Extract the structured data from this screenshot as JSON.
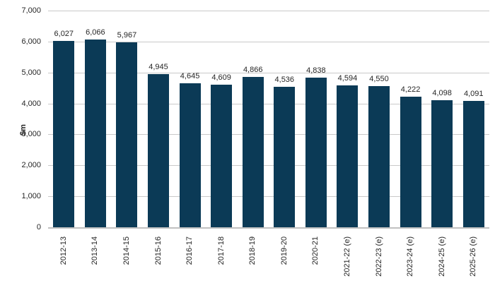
{
  "chart_data": {
    "type": "bar",
    "title": "",
    "xlabel": "",
    "ylabel": "$m",
    "categories": [
      "2012-13",
      "2013-14",
      "2014-15",
      "2015-16",
      "2016-17",
      "2017-18",
      "2018-19",
      "2019-20",
      "2020-21",
      "2021-22 (e)",
      "2022-23 (e)",
      "2023-24 (e)",
      "2024-25 (e)",
      "2025-26 (e)"
    ],
    "values": [
      6027,
      6066,
      5967,
      4945,
      4645,
      4609,
      4866,
      4536,
      4838,
      4594,
      4550,
      4222,
      4098,
      4091
    ],
    "value_labels": [
      "6,027",
      "6,066",
      "5,967",
      "4,945",
      "4,645",
      "4,609",
      "4,866",
      "4,536",
      "4,838",
      "4,594",
      "4,550",
      "4,222",
      "4,098",
      "4,091"
    ],
    "ylim": [
      0,
      7000
    ],
    "ytick_interval": 1000,
    "ytick_labels": [
      "0",
      "1,000",
      "2,000",
      "3,000",
      "4,000",
      "5,000",
      "6,000",
      "7,000"
    ],
    "grid": true,
    "legend": "none",
    "bar_color": "#0b3a56",
    "gridline_color": "#c9c9c9",
    "axis_line_color": "#c0c0c0",
    "text_color": "#262626"
  }
}
